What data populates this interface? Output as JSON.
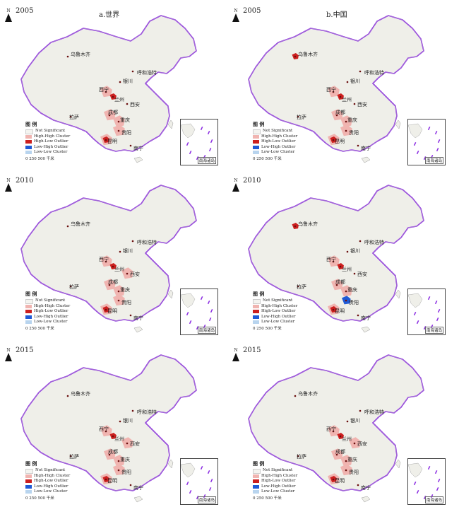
{
  "colors": {
    "land": "#efefe9",
    "border": "#8a2be2",
    "not_significant": "#f4f4f0",
    "high_high": "#f0b4b0",
    "high_low": "#cc1f1f",
    "low_high": "#1f5ad6",
    "low_low": "#b8d4ee"
  },
  "legend": {
    "title": "图 例",
    "items": [
      "Not Significant",
      "High-High Cluster",
      "High-Low Outlier",
      "Low-High Outlier",
      "Low-Low Cluster"
    ]
  },
  "scale_label": "0  250 500 千米",
  "north_label": "N",
  "inset_label": "南海诸岛",
  "cities": {
    "urumqi": "乌鲁木齐",
    "hohhot": "呼和浩特",
    "yinchuan": "银川",
    "xining": "西宁",
    "lanzhou": "兰州",
    "xian": "西安",
    "lhasa": "拉萨",
    "chengdu": "成都",
    "chongqing": "重庆",
    "guiyang": "贵阳",
    "kunming": "昆明",
    "nanning": "南宁"
  },
  "panels": [
    {
      "year": "2005",
      "title": "a.世界",
      "clusters": {
        "high_high": [
          "xining",
          "chengdu",
          "chongqing",
          "guiyang",
          "kunming"
        ],
        "high_low": [
          "lanzhou",
          "kunming"
        ],
        "low_high": []
      }
    },
    {
      "year": "2005",
      "title": "b.中国",
      "clusters": {
        "high_high": [
          "xining",
          "chengdu",
          "chongqing",
          "guiyang",
          "kunming"
        ],
        "high_low": [
          "urumqi",
          "lanzhou",
          "kunming"
        ],
        "low_high": []
      }
    },
    {
      "year": "2010",
      "title": "",
      "clusters": {
        "high_high": [
          "xining",
          "chengdu",
          "chongqing",
          "guiyang",
          "kunming",
          "xian"
        ],
        "high_low": [
          "lanzhou",
          "kunming"
        ],
        "low_high": []
      }
    },
    {
      "year": "2010",
      "title": "",
      "clusters": {
        "high_high": [
          "xining",
          "chengdu",
          "chongqing",
          "kunming"
        ],
        "high_low": [
          "urumqi",
          "lanzhou",
          "kunming"
        ],
        "low_high": [
          "guiyang"
        ]
      }
    },
    {
      "year": "2015",
      "title": "",
      "clusters": {
        "high_high": [
          "xining",
          "chengdu",
          "chongqing",
          "guiyang",
          "kunming",
          "xian"
        ],
        "high_low": [
          "lanzhou",
          "kunming"
        ],
        "low_high": []
      }
    },
    {
      "year": "2015",
      "title": "",
      "clusters": {
        "high_high": [
          "xining",
          "chengdu",
          "chongqing",
          "guiyang",
          "kunming",
          "xian"
        ],
        "high_low": [
          "lanzhou",
          "kunming"
        ],
        "low_high": []
      }
    }
  ]
}
